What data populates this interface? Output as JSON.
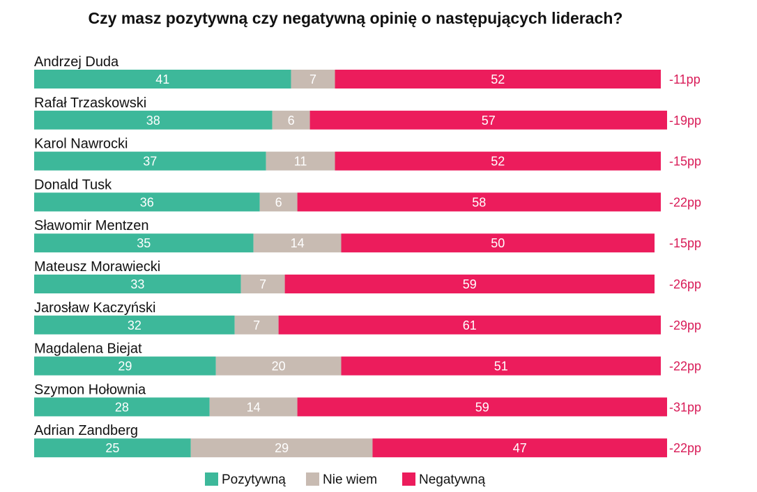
{
  "chart_data": {
    "type": "bar",
    "orientation": "horizontal",
    "stacked": true,
    "title": "Czy masz pozytywną czy negatywną opinię o następujących liderach?",
    "categories": [
      "Andrzej Duda",
      "Rafał Trzaskowski",
      "Karol Nawrocki",
      "Donald Tusk",
      "Sławomir Mentzen",
      "Mateusz Morawiecki",
      "Jarosław Kaczyński",
      "Magdalena Biejat",
      "Szymon Hołownia",
      "Adrian Zandberg"
    ],
    "series": [
      {
        "name": "Pozytywną",
        "color": "#3db89a",
        "values": [
          41,
          38,
          37,
          36,
          35,
          33,
          32,
          29,
          28,
          25
        ]
      },
      {
        "name": "Nie wiem",
        "color": "#c8bbb2",
        "values": [
          7,
          6,
          11,
          6,
          14,
          7,
          7,
          20,
          14,
          29
        ]
      },
      {
        "name": "Negatywną",
        "color": "#ec1c5c",
        "values": [
          52,
          57,
          52,
          58,
          50,
          59,
          61,
          51,
          59,
          47
        ]
      }
    ],
    "net_labels": [
      "-11pp",
      "-19pp",
      "-15pp",
      "-22pp",
      "-15pp",
      "-26pp",
      "-29pp",
      "-22pp",
      "-31pp",
      "-22pp"
    ],
    "net_color": "#d81b57",
    "xlim": [
      0,
      100
    ],
    "grid": false,
    "legend_position": "bottom-center"
  }
}
